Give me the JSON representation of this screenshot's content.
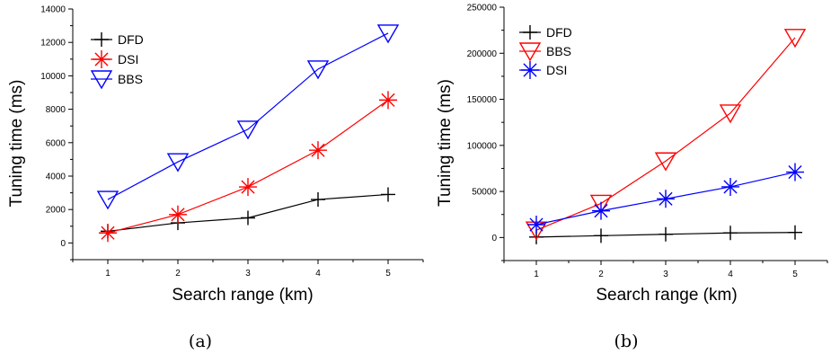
{
  "chart_data": [
    {
      "type": "line",
      "caption": "(a)",
      "xlabel": "Search range (km)",
      "ylabel": "Tuning time (ms)",
      "x": [
        1,
        2,
        3,
        4,
        5
      ],
      "xlim": [
        0.5,
        5.5
      ],
      "ylim": [
        -1000,
        14000
      ],
      "yticks": [
        0,
        2000,
        4000,
        6000,
        8000,
        10000,
        12000,
        14000
      ],
      "grid": false,
      "legend_position": "top-left",
      "series": [
        {
          "name": "DFD",
          "marker": "plus",
          "color": "#000000",
          "values": [
            700,
            1200,
            1500,
            2600,
            2900
          ]
        },
        {
          "name": "DSI",
          "marker": "asterisk",
          "color": "#ff0000",
          "values": [
            600,
            1700,
            3350,
            5550,
            8550
          ]
        },
        {
          "name": "BBS",
          "marker": "triangle-down",
          "color": "#0000ff",
          "values": [
            2600,
            4850,
            6800,
            10400,
            12550
          ]
        }
      ]
    },
    {
      "type": "line",
      "caption": "(b)",
      "xlabel": "Search range (km)",
      "ylabel": "Tuning time (ms)",
      "x": [
        1,
        2,
        3,
        4,
        5
      ],
      "xlim": [
        0.5,
        5.5
      ],
      "ylim": [
        -25000,
        250000
      ],
      "yticks": [
        0,
        50000,
        100000,
        150000,
        200000,
        250000
      ],
      "grid": false,
      "legend_position": "top-left",
      "series": [
        {
          "name": "DFD",
          "marker": "plus",
          "color": "#000000",
          "values": [
            500,
            2000,
            3500,
            5000,
            5500
          ]
        },
        {
          "name": "BBS",
          "marker": "triangle-down",
          "color": "#ff0000",
          "values": [
            8000,
            37000,
            83000,
            135000,
            217000
          ]
        },
        {
          "name": "DSI",
          "marker": "asterisk",
          "color": "#0000ff",
          "values": [
            14000,
            29000,
            42000,
            55000,
            71000
          ]
        }
      ]
    }
  ]
}
